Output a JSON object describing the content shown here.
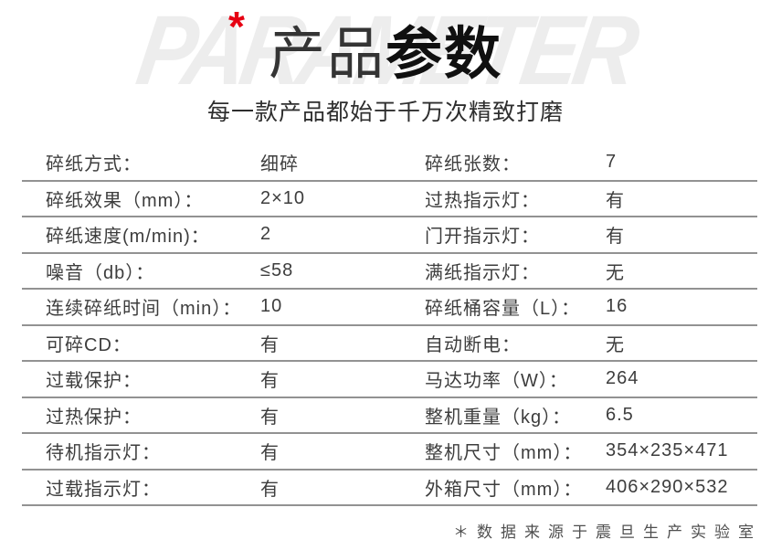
{
  "header": {
    "asterisk": "*",
    "watermark": "PARAMETER",
    "title_light": "产品",
    "title_bold": "参数",
    "subtitle": "每一款产品都始于千万次精致打磨"
  },
  "table": {
    "rows": [
      {
        "left_label": "碎纸方式：",
        "left_value": "细碎",
        "right_label": "碎纸张数：",
        "right_value": "7"
      },
      {
        "left_label": "碎纸效果（mm）：",
        "left_value": "2×10",
        "right_label": "过热指示灯：",
        "right_value": "有"
      },
      {
        "left_label": "碎纸速度(m/min)：",
        "left_value": "2",
        "right_label": "门开指示灯：",
        "right_value": "有"
      },
      {
        "left_label": "噪音（db）：",
        "left_value": "≤58",
        "right_label": "满纸指示灯：",
        "right_value": "无"
      },
      {
        "left_label": "连续碎纸时间（min）：",
        "left_value": "10",
        "right_label": "碎纸桶容量（L）：",
        "right_value": "16"
      },
      {
        "left_label": "可碎CD：",
        "left_value": "有",
        "right_label": "自动断电：",
        "right_value": "无"
      },
      {
        "left_label": "过载保护：",
        "left_value": "有",
        "right_label": "马达功率（W）：",
        "right_value": "264"
      },
      {
        "left_label": "过热保护：",
        "left_value": "有",
        "right_label": "整机重量（kg）：",
        "right_value": "6.5"
      },
      {
        "left_label": "待机指示灯：",
        "left_value": "有",
        "right_label": "整机尺寸（mm）：",
        "right_value": "354×235×471"
      },
      {
        "left_label": "过载指示灯：",
        "left_value": "有",
        "right_label": "外箱尺寸（mm）：",
        "right_value": "406×290×532"
      }
    ]
  },
  "footer": {
    "note": "＊数据来源于震旦生产实验室"
  },
  "colors": {
    "accent_red": "#e60012",
    "table_text": "#3d3d3d",
    "divider_line": "#929292",
    "watermark_gray": "#ededed",
    "title_black": "#101010"
  }
}
